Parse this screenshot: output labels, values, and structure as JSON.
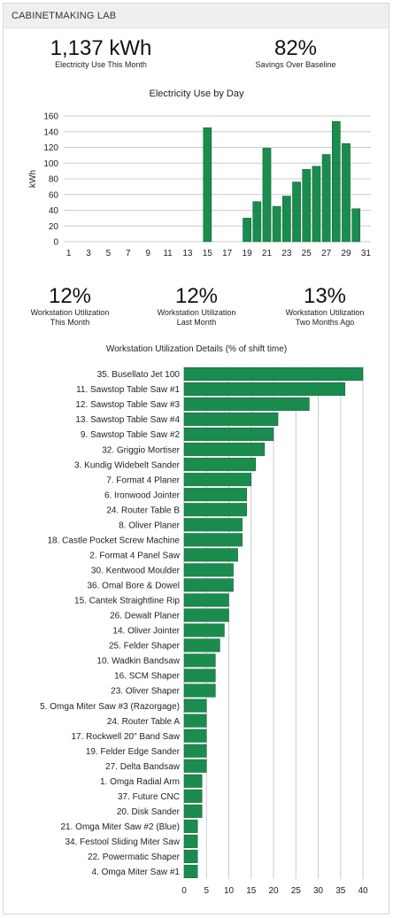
{
  "panel_title": "CABINETMAKING LAB",
  "kpis_top": [
    {
      "value": "1,137 kWh",
      "label": "Electricity Use This Month"
    },
    {
      "value": "82%",
      "label": "Savings Over Baseline"
    }
  ],
  "kpis_util": [
    {
      "value": "12%",
      "label_lines": [
        "Workstation Utilization",
        "This Month"
      ]
    },
    {
      "value": "12%",
      "label_lines": [
        "Workstation Utilization",
        "Last Month"
      ]
    },
    {
      "value": "13%",
      "label_lines": [
        "Workstation Utilization",
        "Two Months Ago"
      ]
    }
  ],
  "colors": {
    "bar": "#1a8c4e",
    "bar_edge": "#0e5c32",
    "grid": "#cccccc"
  },
  "chart_data": [
    {
      "type": "bar",
      "title": "Electricity Use by Day",
      "xlabel": "",
      "ylabel": "kWh",
      "ylim": [
        0,
        160
      ],
      "yticks": [
        0,
        20,
        40,
        60,
        80,
        100,
        120,
        140,
        160
      ],
      "xticks": [
        1,
        3,
        5,
        7,
        9,
        11,
        13,
        15,
        17,
        19,
        21,
        23,
        25,
        27,
        29,
        31
      ],
      "grid": true,
      "categories": [
        1,
        2,
        3,
        4,
        5,
        6,
        7,
        8,
        9,
        10,
        11,
        12,
        13,
        14,
        15,
        16,
        17,
        18,
        19,
        20,
        21,
        22,
        23,
        24,
        25,
        26,
        27,
        28,
        29,
        30,
        31
      ],
      "values": [
        0,
        0,
        0,
        0,
        0,
        0,
        0,
        0,
        0,
        0,
        0,
        0,
        0,
        0,
        145,
        0,
        0,
        0,
        30,
        51,
        119,
        45,
        58,
        76,
        92,
        96,
        111,
        153,
        125,
        42,
        0
      ]
    },
    {
      "type": "bar",
      "orientation": "horizontal",
      "title": "Workstation Utilization Details (% of shift time)",
      "xlabel": "",
      "ylabel": "",
      "xlim": [
        0,
        40
      ],
      "xticks": [
        0,
        5,
        10,
        15,
        20,
        25,
        30,
        35,
        40
      ],
      "grid": true,
      "categories": [
        "35. Busellato Jet 100",
        "11. Sawstop Table Saw #1",
        "12. Sawstop Table Saw #3",
        "13. Sawstop Table Saw #4",
        "9. Sawstop Table Saw #2",
        "32. Griggio Mortiser",
        "3. Kundig Widebelt Sander",
        "7. Format 4 Planer",
        "6. Ironwood Jointer",
        "24. Router Table B",
        "8. Oliver Planer",
        "18. Castle Pocket Screw Machine",
        "2. Format 4 Panel Saw",
        "30. Kentwood Moulder",
        "36. Omal Bore & Dowel",
        "15. Cantek Straightline Rip",
        "26. Dewalt Planer",
        "14. Oliver Jointer",
        "25. Felder Shaper",
        "10. Wadkin Bandsaw",
        "16. SCM Shaper",
        "23. Oliver Shaper",
        "5. Omga Miter Saw #3 (Razorgage)",
        "24. Router Table A",
        "17. Rockwell 20\" Band Saw",
        "19. Felder Edge Sander",
        "27. Delta Bandsaw",
        "1. Omga Radial Arm",
        "37. Future CNC",
        "20. Disk Sander",
        "21. Omga Miter Saw #2 (Blue)",
        "34. Festool Sliding Miter Saw",
        "22. Powermatic Shaper",
        "4. Omga Miter Saw #1"
      ],
      "values": [
        40,
        36,
        28,
        21,
        20,
        18,
        16,
        15,
        14,
        14,
        13,
        13,
        12,
        11,
        11,
        10,
        10,
        9,
        8,
        7,
        7,
        7,
        5,
        5,
        5,
        5,
        5,
        4,
        4,
        4,
        3,
        3,
        3,
        3
      ]
    }
  ]
}
